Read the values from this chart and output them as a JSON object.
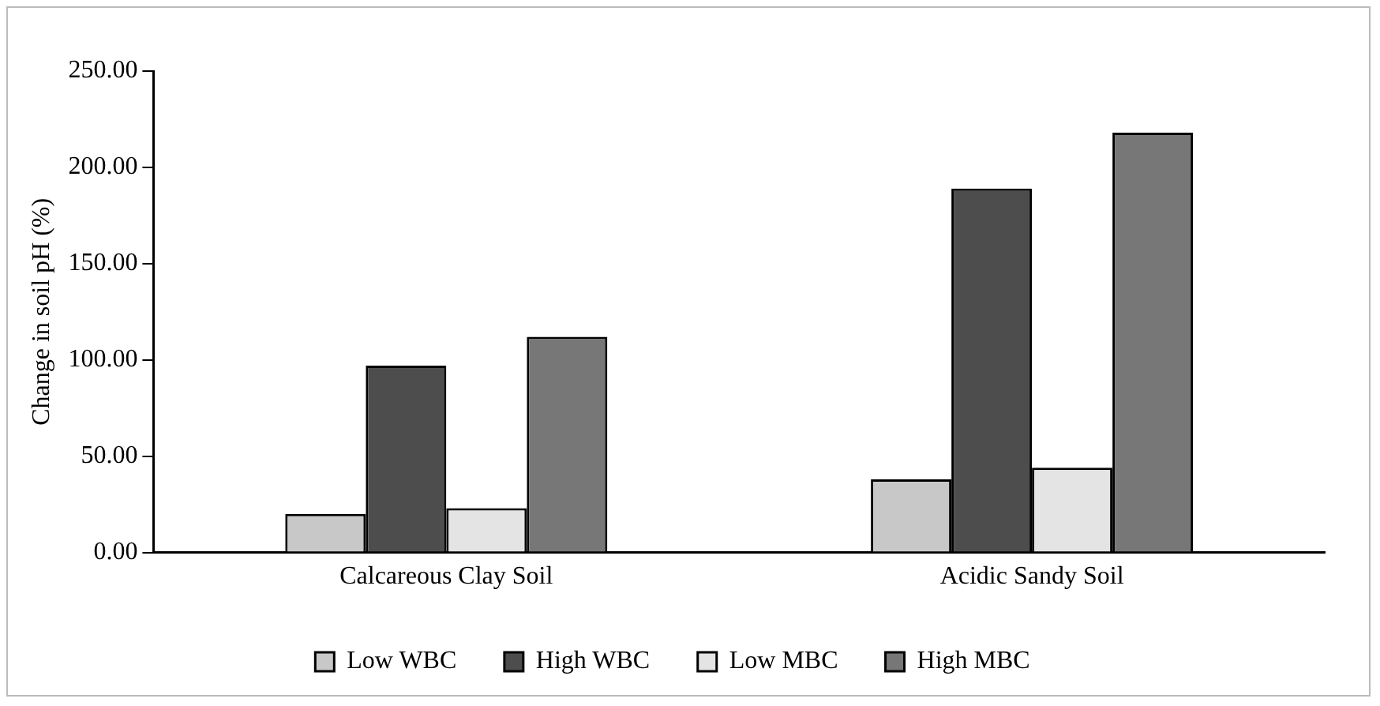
{
  "chart_data": {
    "type": "bar",
    "ylabel": "Change in soil pH (%)",
    "categories": [
      "Calcareous Clay Soil",
      "Acidic Sandy Soil"
    ],
    "series": [
      {
        "name": "Low WBC",
        "color": "#c8c8c8",
        "values": [
          20,
          38
        ]
      },
      {
        "name": "High WBC",
        "color": "#4d4d4d",
        "values": [
          97,
          189
        ]
      },
      {
        "name": "Low MBC",
        "color": "#e4e4e4",
        "values": [
          23,
          44
        ]
      },
      {
        "name": "High MBC",
        "color": "#777777",
        "values": [
          112,
          218
        ]
      }
    ],
    "ylim": [
      0,
      250
    ],
    "yticks": [
      {
        "value": 0,
        "label": "0.00"
      },
      {
        "value": 50,
        "label": "50.00"
      },
      {
        "value": 100,
        "label": "100.00"
      },
      {
        "value": 150,
        "label": "150.00"
      },
      {
        "value": 200,
        "label": "200.00"
      },
      {
        "value": 250,
        "label": "250.00"
      }
    ],
    "grid": false,
    "legend": "bottom"
  }
}
